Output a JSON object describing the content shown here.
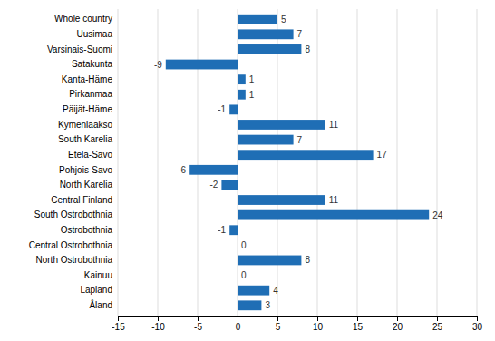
{
  "chart_data": {
    "type": "bar",
    "orientation": "horizontal",
    "categories": [
      "Whole country",
      "Uusimaa",
      "Varsinais-Suomi",
      "Satakunta",
      "Kanta-Häme",
      "Pirkanmaa",
      "Päijät-Häme",
      "Kymenlaakso",
      "South Karelia",
      "Etelä-Savo",
      "Pohjois-Savo",
      "North Karelia",
      "Central Finland",
      "South Ostrobothnia",
      "Ostrobothnia",
      "Central Ostrobothnia",
      "North Ostrobothnia",
      "Kainuu",
      "Lapland",
      "Åland"
    ],
    "values": [
      5,
      7,
      8,
      -9,
      1,
      1,
      -1,
      11,
      7,
      17,
      -6,
      -2,
      11,
      24,
      -1,
      0,
      8,
      0,
      4,
      3
    ],
    "color": "#1F6EB5",
    "xlim": [
      -15,
      30
    ],
    "xticks": [
      -15,
      -10,
      -5,
      0,
      5,
      10,
      15,
      20,
      25,
      30
    ],
    "grid": true,
    "data_labels": true
  }
}
